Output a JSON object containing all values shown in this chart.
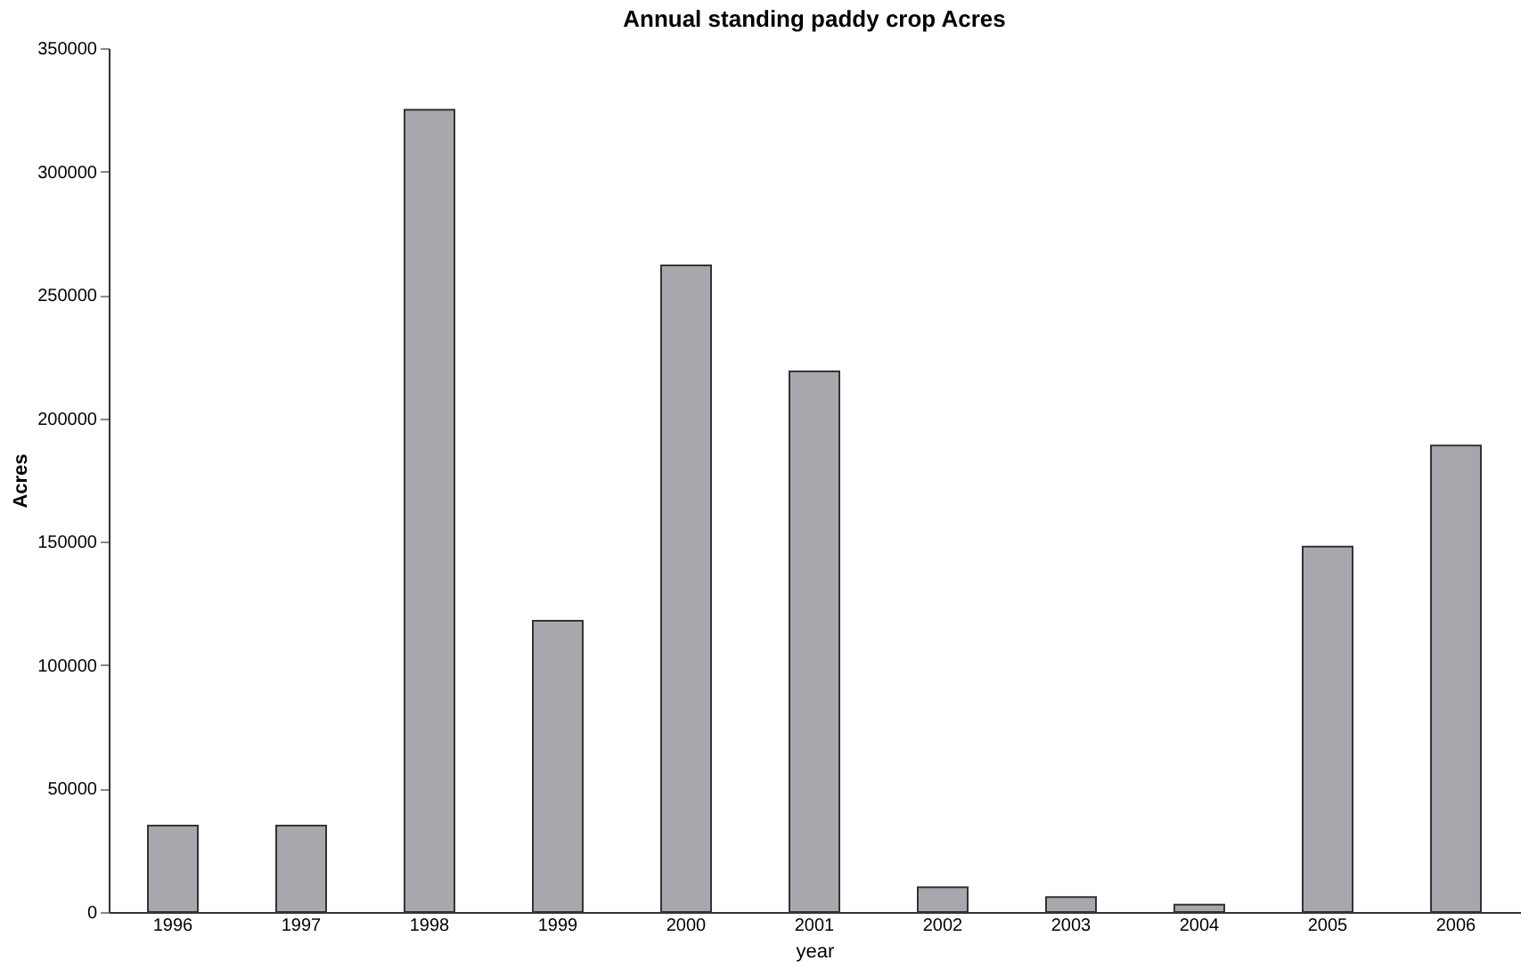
{
  "chart_data": {
    "type": "bar",
    "title": "Annual standing paddy crop Acres",
    "xlabel": "year",
    "ylabel": "Acres",
    "categories": [
      "1996",
      "1997",
      "1998",
      "1999",
      "2000",
      "2001",
      "2002",
      "2003",
      "2004",
      "2005",
      "2006"
    ],
    "values": [
      35000,
      35000,
      325000,
      118000,
      262000,
      219000,
      10000,
      6000,
      3000,
      148000,
      189000
    ],
    "color": "#a9a7ad",
    "ylim": [
      0,
      350000
    ],
    "yticks": [
      0,
      50000,
      100000,
      150000,
      200000,
      250000,
      300000,
      350000
    ],
    "grid": false
  }
}
